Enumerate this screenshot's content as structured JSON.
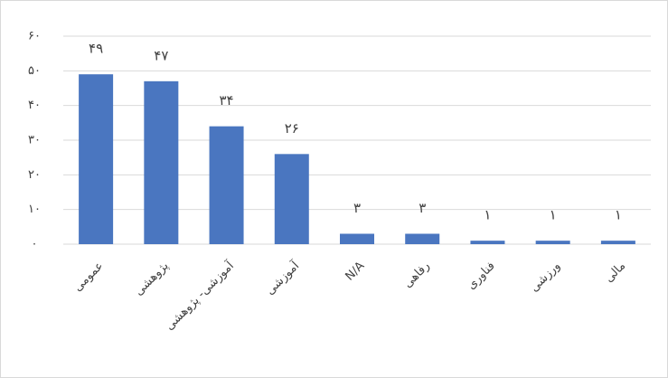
{
  "chart_data": {
    "type": "bar",
    "categories": [
      "عمومی",
      "پژوهشی",
      "آموزشی- پژوهشی",
      "آموزشی",
      "N/A",
      "رفاهی",
      "فناوری",
      "ورزشی",
      "مالی"
    ],
    "values": [
      49,
      47,
      34,
      26,
      3,
      3,
      1,
      1,
      1
    ],
    "value_labels": [
      "۴۹",
      "۴۷",
      "۳۴",
      "۲۶",
      "۳",
      "۳",
      "۱",
      "۱",
      "۱"
    ],
    "color": "#4a76c0",
    "ylim": [
      0,
      60
    ],
    "yticks": [
      {
        "value": 0,
        "label": "۰"
      },
      {
        "value": 10,
        "label": "۱۰"
      },
      {
        "value": 20,
        "label": "۲۰"
      },
      {
        "value": 30,
        "label": "۳۰"
      },
      {
        "value": 40,
        "label": "۴۰"
      },
      {
        "value": 50,
        "label": "۵۰"
      },
      {
        "value": 60,
        "label": "۶۰"
      }
    ],
    "grid": true
  }
}
